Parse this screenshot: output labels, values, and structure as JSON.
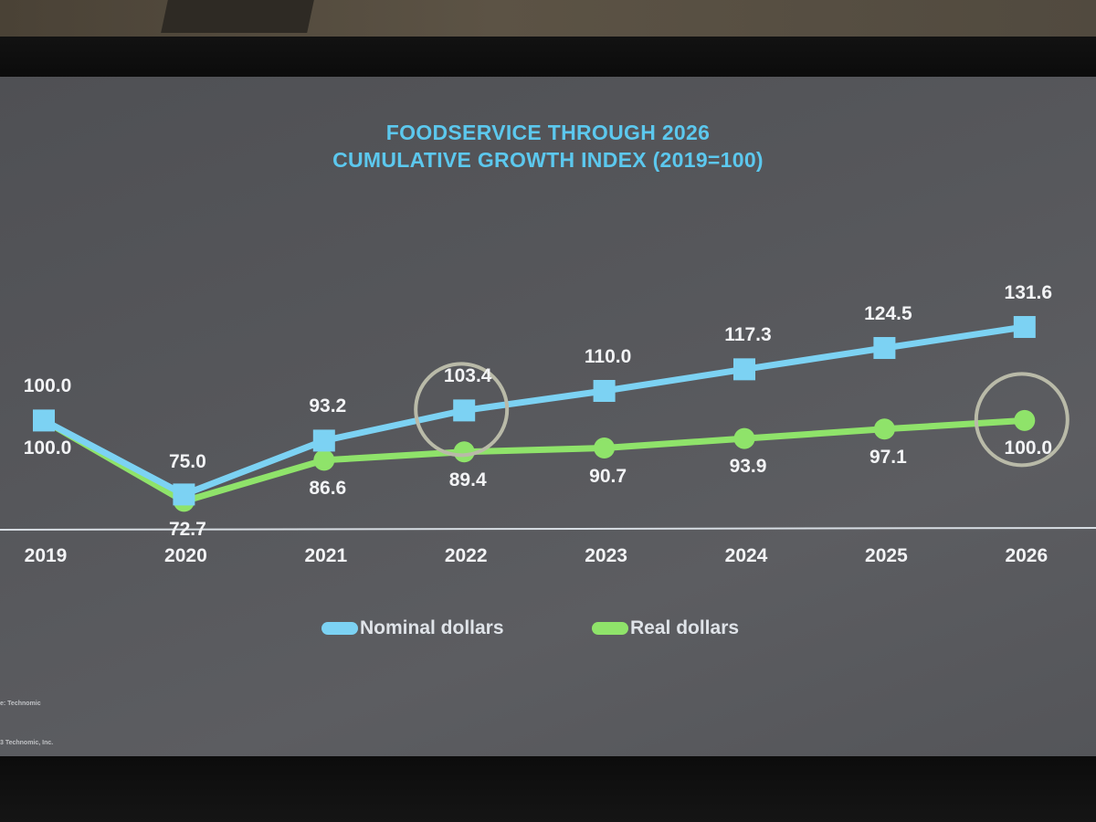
{
  "chart_data": {
    "type": "line",
    "title": "FOODSERVICE THROUGH 2026",
    "subtitle": "CUMULATIVE GROWTH INDEX (2019=100)",
    "x": [
      "2019",
      "2020",
      "2021",
      "2022",
      "2023",
      "2024",
      "2025",
      "2026"
    ],
    "series": [
      {
        "name": "Nominal dollars",
        "color": "#7cd2f3",
        "marker": "square",
        "values": [
          100.0,
          75.0,
          93.2,
          103.4,
          110.0,
          117.3,
          124.5,
          131.6
        ],
        "labels": [
          "100.0",
          "75.0",
          "93.2",
          "103.4",
          "110.0",
          "117.3",
          "124.5",
          "131.6"
        ]
      },
      {
        "name": "Real dollars",
        "color": "#8fe36a",
        "marker": "circle",
        "values": [
          100.0,
          72.7,
          86.6,
          89.4,
          90.7,
          93.9,
          97.1,
          100.0
        ],
        "labels": [
          "100.0",
          "72.7",
          "86.6",
          "89.4",
          "90.7",
          "93.9",
          "97.1",
          "100.0"
        ]
      }
    ],
    "ylim": [
      60,
      140
    ],
    "highlighted_points": [
      {
        "series": "Nominal dollars",
        "x": "2022"
      },
      {
        "series": "Real dollars",
        "x": "2026"
      }
    ],
    "legend": "bottom-center",
    "grid": false
  },
  "footnotes": {
    "source": "e: Technomic",
    "copyright": "3 Technomic, Inc."
  }
}
